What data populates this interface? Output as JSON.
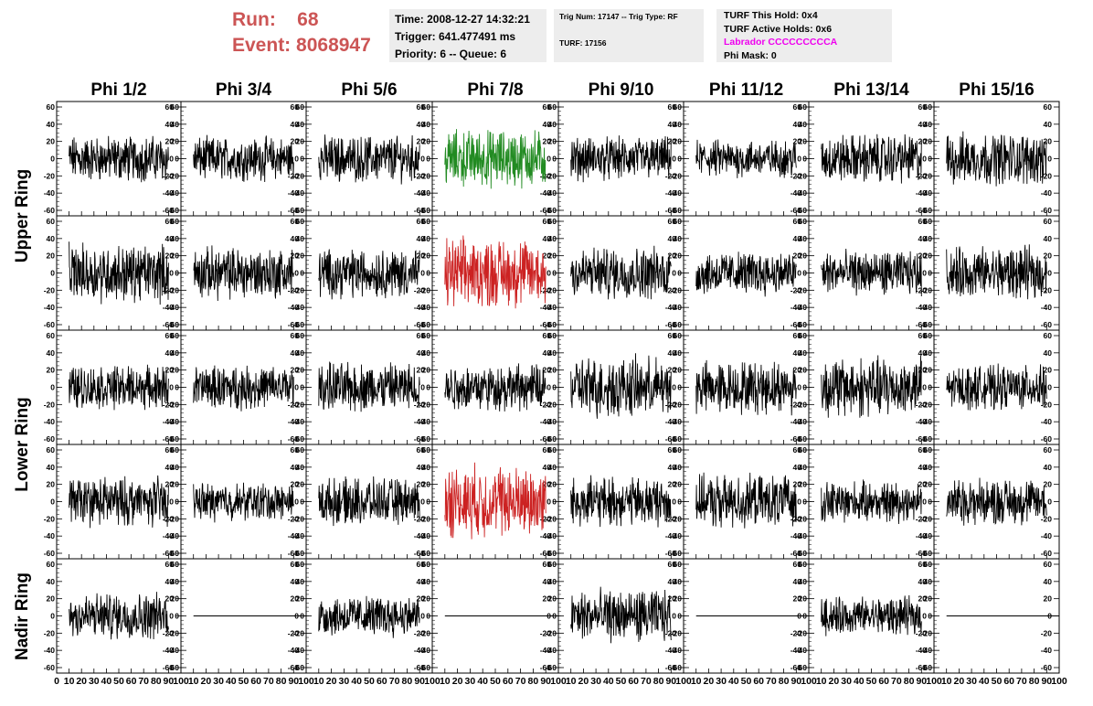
{
  "header": {
    "run_label": "Run:",
    "run_value": "68",
    "event_label": "Event:",
    "event_value": "8068947",
    "label_color": "#cc5555"
  },
  "info_box_1": {
    "time": "Time: 2008-12-27 14:32:21",
    "trigger": "Trigger: 641.477491 ms",
    "priority": "Priority: 6 -- Queue: 6"
  },
  "info_box_2": {
    "trig": "Trig Num: 17147 -- Trig Type: RF",
    "turf": "TURF: 17156"
  },
  "info_box_3": {
    "this_hold": "TURF This Hold: 0x4",
    "active_holds": "TURF Active Holds: 0x6",
    "labrador": "Labrador CCCCCCCCCA",
    "labrador_color": "#ee00ee",
    "phi_mask": "Phi Mask: 0"
  },
  "chart_data": {
    "type": "line",
    "title": "",
    "columns": [
      "Phi 1/2",
      "Phi 3/4",
      "Phi 5/6",
      "Phi 7/8",
      "Phi 9/10",
      "Phi 11/12",
      "Phi 13/14",
      "Phi 15/16"
    ],
    "rows": [
      "Upper Ring",
      "Upper Ring",
      "Lower Ring",
      "Lower Ring",
      "Nadir Ring"
    ],
    "row_labels": [
      "Upper Ring",
      "Lower Ring",
      "Nadir Ring"
    ],
    "xlim": [
      0,
      100
    ],
    "ylim": [
      -60,
      60
    ],
    "y_ticks": [
      -60,
      -40,
      -20,
      0,
      20,
      40,
      60
    ],
    "x_tick_labels": [
      "0",
      "10",
      "20",
      "30",
      "40",
      "50",
      "60",
      "70",
      "80",
      "90",
      "100"
    ],
    "signal_x_range": [
      10,
      90
    ],
    "amplitudes": [
      [
        16,
        15,
        16,
        20,
        15,
        13,
        17,
        18
      ],
      [
        20,
        18,
        17,
        24,
        18,
        15,
        15,
        18
      ],
      [
        15,
        15,
        17,
        16,
        21,
        18,
        21,
        15
      ],
      [
        17,
        13,
        16,
        25,
        17,
        18,
        14,
        16
      ],
      [
        16,
        0,
        14,
        0,
        18,
        0,
        13,
        0
      ]
    ],
    "trace_colors": [
      [
        "#000000",
        "#000000",
        "#000000",
        "#228b22",
        "#000000",
        "#000000",
        "#000000",
        "#000000"
      ],
      [
        "#000000",
        "#000000",
        "#000000",
        "#cc2222",
        "#000000",
        "#000000",
        "#000000",
        "#000000"
      ],
      [
        "#000000",
        "#000000",
        "#000000",
        "#000000",
        "#000000",
        "#000000",
        "#000000",
        "#000000"
      ],
      [
        "#000000",
        "#000000",
        "#000000",
        "#cc2222",
        "#000000",
        "#000000",
        "#000000",
        "#000000"
      ],
      [
        "#000000",
        "#000000",
        "#000000",
        "#000000",
        "#000000",
        "#000000",
        "#000000",
        "#000000"
      ]
    ]
  }
}
